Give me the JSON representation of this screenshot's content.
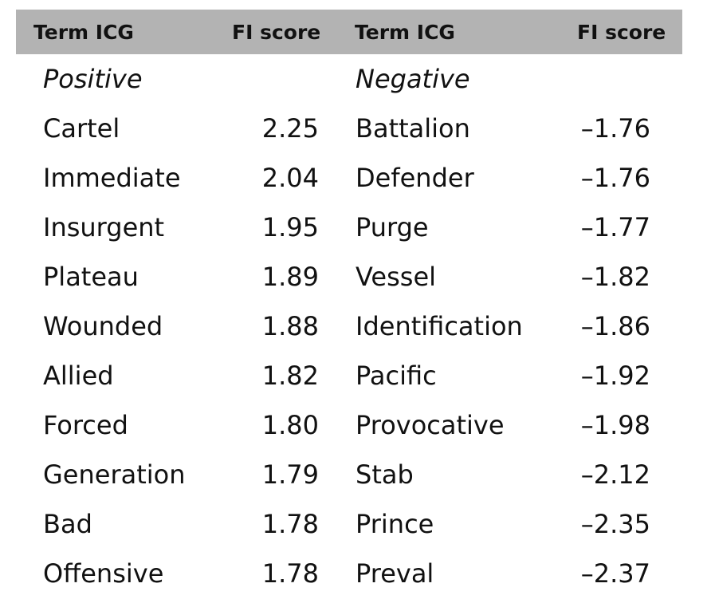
{
  "header": {
    "col1": "Term ICG",
    "col2": "FI score",
    "col3": "Term ICG",
    "col4": "FI score"
  },
  "groups": {
    "positive": "Positive",
    "negative": "Negative"
  },
  "rows": [
    {
      "pos_term": "Cartel",
      "pos_score": "2.25",
      "neg_term": "Battalion",
      "neg_score": "–1.76"
    },
    {
      "pos_term": "Immediate",
      "pos_score": "2.04",
      "neg_term": "Defender",
      "neg_score": "–1.76"
    },
    {
      "pos_term": "Insurgent",
      "pos_score": "1.95",
      "neg_term": "Purge",
      "neg_score": "–1.77"
    },
    {
      "pos_term": "Plateau",
      "pos_score": "1.89",
      "neg_term": "Vessel",
      "neg_score": "–1.82"
    },
    {
      "pos_term": "Wounded",
      "pos_score": "1.88",
      "neg_term": "Identification",
      "neg_score": "–1.86"
    },
    {
      "pos_term": "Allied",
      "pos_score": "1.82",
      "neg_term": "Pacific",
      "neg_score": "–1.92"
    },
    {
      "pos_term": "Forced",
      "pos_score": "1.80",
      "neg_term": "Provocative",
      "neg_score": "–1.98"
    },
    {
      "pos_term": "Generation",
      "pos_score": "1.79",
      "neg_term": "Stab",
      "neg_score": "–2.12"
    },
    {
      "pos_term": "Bad",
      "pos_score": "1.78",
      "neg_term": "Prince",
      "neg_score": "–2.35"
    },
    {
      "pos_term": "Offensive",
      "pos_score": "1.78",
      "neg_term": "Preval",
      "neg_score": "–2.37"
    }
  ],
  "colors": {
    "header_bg": "#b3b3b3",
    "text": "#111111",
    "background": "#ffffff"
  }
}
